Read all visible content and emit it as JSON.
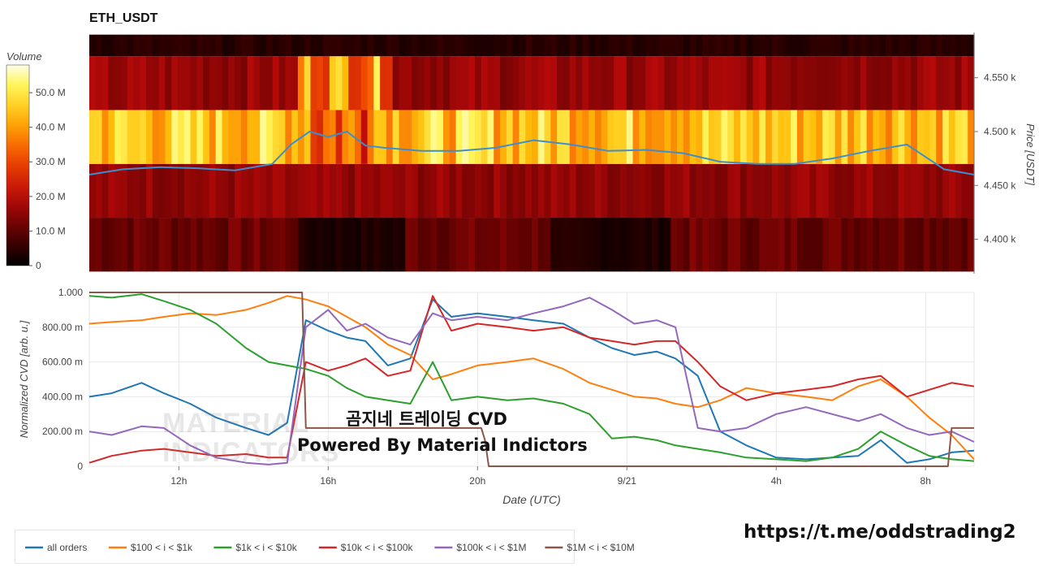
{
  "title": "ETH_USDT",
  "watermark": {
    "line1": "MATERIAL",
    "line2": "INDICATORS"
  },
  "overlay": {
    "line1": "곰지네 트레이딩 CVD",
    "line2": "Powered By Material Indictors"
  },
  "footer_link": "https://t.me/oddstrading2",
  "colors": {
    "all_orders": "#1f77b4",
    "b100_1k": "#ff7f0e",
    "b1k_10k": "#2ca02c",
    "b10k_100k": "#d62728",
    "b100k_1M": "#9467bd",
    "b1M_10M": "#8c564b",
    "price_line": "#3b8fd0"
  },
  "chart_data": [
    {
      "type": "heatmap",
      "title": "ETH_USDT",
      "colorbar": {
        "title": "Volume",
        "ticks": [
          "0",
          "10.0 M",
          "20.0 M",
          "30.0 M",
          "40.0 M",
          "50.0 M"
        ],
        "tick_values": [
          0,
          10,
          20,
          30,
          40,
          50
        ],
        "range": [
          0,
          58
        ]
      },
      "ylabel": "Price [USDT]",
      "y_ticks": [
        "4.400 k",
        "4.450 k",
        "4.500 k",
        "4.550 k"
      ],
      "y_tick_values": [
        4400,
        4450,
        4500,
        4550
      ],
      "ylim": [
        4368,
        4592
      ],
      "x_time_range_hours": [
        9.6,
        33.3
      ],
      "bands": [
        {
          "price_low": 4370,
          "price_high": 4420,
          "profile": "dark_low"
        },
        {
          "price_low": 4420,
          "price_high": 4470,
          "profile": "mid_red"
        },
        {
          "price_low": 4470,
          "price_high": 4520,
          "profile": "bright_yellow"
        },
        {
          "price_low": 4520,
          "price_high": 4570,
          "profile": "upper_red"
        },
        {
          "price_low": 4570,
          "price_high": 4590,
          "profile": "near_black"
        }
      ],
      "price_series": {
        "x": [
          9.6,
          10.5,
          11.5,
          12.5,
          13.5,
          14.5,
          15.0,
          15.5,
          16.0,
          16.5,
          17.0,
          17.5,
          18.5,
          19.5,
          20.5,
          21.5,
          22.5,
          23.5,
          24.5,
          25.5,
          26.5,
          27.5,
          28.5,
          29.5,
          30.5,
          31.5,
          32.5,
          33.3
        ],
        "y": [
          4460,
          4465,
          4467,
          4466,
          4464,
          4470,
          4488,
          4500,
          4495,
          4500,
          4487,
          4485,
          4482,
          4482,
          4485,
          4492,
          4488,
          4482,
          4483,
          4480,
          4472,
          4470,
          4470,
          4475,
          4482,
          4488,
          4465,
          4460
        ]
      }
    },
    {
      "type": "line",
      "xlabel": "Date (UTC)",
      "ylabel": "Normalized CVD [arb. u.]",
      "x_ticks": [
        "12h",
        "16h",
        "20h",
        "9/21",
        "4h",
        "8h"
      ],
      "x_tick_hours": [
        12,
        16,
        20,
        24,
        28,
        32
      ],
      "xlim": [
        9.6,
        33.3
      ],
      "y_ticks": [
        "0",
        "200.00 m",
        "400.00 m",
        "600.00 m",
        "800.00 m",
        "1.000"
      ],
      "y_tick_values": [
        0,
        0.2,
        0.4,
        0.6,
        0.8,
        1.0
      ],
      "ylim": [
        0,
        1.0
      ],
      "grid": true,
      "legend_position": "bottom",
      "series": [
        {
          "name": "all orders",
          "color_key": "all_orders",
          "x": [
            9.6,
            10.2,
            11.0,
            11.6,
            12.3,
            13.0,
            13.8,
            14.4,
            14.9,
            15.4,
            16.0,
            16.5,
            17.0,
            17.6,
            18.2,
            18.8,
            19.3,
            20.0,
            20.8,
            21.5,
            22.3,
            23.0,
            23.6,
            24.2,
            24.8,
            25.3,
            25.9,
            26.5,
            27.2,
            28.0,
            28.8,
            29.5,
            30.2,
            30.8,
            31.5,
            32.1,
            32.7,
            33.3
          ],
          "y": [
            0.4,
            0.42,
            0.48,
            0.42,
            0.36,
            0.28,
            0.22,
            0.18,
            0.25,
            0.84,
            0.78,
            0.74,
            0.72,
            0.58,
            0.62,
            0.96,
            0.86,
            0.88,
            0.86,
            0.84,
            0.82,
            0.74,
            0.68,
            0.64,
            0.66,
            0.62,
            0.52,
            0.2,
            0.12,
            0.05,
            0.04,
            0.05,
            0.06,
            0.15,
            0.02,
            0.04,
            0.08,
            0.09
          ]
        },
        {
          "name": "$100 < i < $1k",
          "color_key": "b100_1k",
          "x": [
            9.6,
            10.2,
            11.0,
            11.6,
            12.3,
            13.0,
            13.8,
            14.4,
            14.9,
            15.4,
            16.0,
            16.5,
            17.0,
            17.6,
            18.2,
            18.8,
            19.3,
            20.0,
            20.8,
            21.5,
            22.3,
            23.0,
            23.6,
            24.2,
            24.8,
            25.3,
            25.9,
            26.5,
            27.2,
            28.0,
            28.8,
            29.5,
            30.2,
            30.8,
            31.5,
            32.1,
            32.7,
            33.3
          ],
          "y": [
            0.82,
            0.83,
            0.84,
            0.86,
            0.88,
            0.87,
            0.9,
            0.94,
            0.98,
            0.96,
            0.92,
            0.86,
            0.8,
            0.7,
            0.64,
            0.5,
            0.53,
            0.58,
            0.6,
            0.62,
            0.56,
            0.48,
            0.44,
            0.4,
            0.39,
            0.36,
            0.34,
            0.38,
            0.45,
            0.42,
            0.4,
            0.38,
            0.46,
            0.5,
            0.4,
            0.28,
            0.18,
            0.04
          ]
        },
        {
          "name": "$1k < i < $10k",
          "color_key": "b1k_10k",
          "x": [
            9.6,
            10.2,
            11.0,
            11.6,
            12.3,
            13.0,
            13.8,
            14.4,
            14.9,
            15.4,
            16.0,
            16.5,
            17.0,
            17.6,
            18.2,
            18.8,
            19.3,
            20.0,
            20.8,
            21.5,
            22.3,
            23.0,
            23.6,
            24.2,
            24.8,
            25.3,
            25.9,
            26.5,
            27.2,
            28.0,
            28.8,
            29.5,
            30.2,
            30.8,
            31.5,
            32.1,
            32.7,
            33.3
          ],
          "y": [
            0.98,
            0.97,
            0.99,
            0.95,
            0.9,
            0.82,
            0.68,
            0.6,
            0.58,
            0.56,
            0.52,
            0.45,
            0.4,
            0.38,
            0.36,
            0.6,
            0.38,
            0.4,
            0.38,
            0.39,
            0.36,
            0.3,
            0.16,
            0.17,
            0.15,
            0.12,
            0.1,
            0.08,
            0.05,
            0.04,
            0.03,
            0.05,
            0.1,
            0.2,
            0.12,
            0.06,
            0.04,
            0.03
          ]
        },
        {
          "name": "$10k < i < $100k",
          "color_key": "b10k_100k",
          "x": [
            9.6,
            10.2,
            11.0,
            11.6,
            12.3,
            13.0,
            13.8,
            14.4,
            14.9,
            15.4,
            16.0,
            16.5,
            17.0,
            17.6,
            18.2,
            18.8,
            19.3,
            20.0,
            20.8,
            21.5,
            22.3,
            23.0,
            23.6,
            24.2,
            24.8,
            25.3,
            25.9,
            26.5,
            27.2,
            28.0,
            28.8,
            29.5,
            30.2,
            30.8,
            31.5,
            32.1,
            32.7,
            33.3
          ],
          "y": [
            0.02,
            0.06,
            0.09,
            0.1,
            0.08,
            0.06,
            0.07,
            0.05,
            0.05,
            0.6,
            0.55,
            0.58,
            0.62,
            0.52,
            0.55,
            0.98,
            0.78,
            0.82,
            0.8,
            0.78,
            0.8,
            0.74,
            0.72,
            0.7,
            0.72,
            0.72,
            0.6,
            0.46,
            0.38,
            0.42,
            0.44,
            0.46,
            0.5,
            0.52,
            0.4,
            0.44,
            0.48,
            0.46
          ]
        },
        {
          "name": "$100k < i < $1M",
          "color_key": "b100k_1M",
          "x": [
            9.6,
            10.2,
            11.0,
            11.6,
            12.3,
            13.0,
            13.8,
            14.4,
            14.9,
            15.4,
            16.0,
            16.5,
            17.0,
            17.6,
            18.2,
            18.8,
            19.3,
            20.0,
            20.8,
            21.5,
            22.3,
            23.0,
            23.6,
            24.2,
            24.8,
            25.3,
            25.9,
            26.5,
            27.2,
            28.0,
            28.8,
            29.5,
            30.2,
            30.8,
            31.5,
            32.1,
            32.7,
            33.3
          ],
          "y": [
            0.2,
            0.18,
            0.23,
            0.22,
            0.12,
            0.05,
            0.02,
            0.01,
            0.02,
            0.8,
            0.9,
            0.78,
            0.82,
            0.74,
            0.7,
            0.88,
            0.84,
            0.86,
            0.84,
            0.88,
            0.92,
            0.97,
            0.9,
            0.82,
            0.84,
            0.8,
            0.22,
            0.2,
            0.22,
            0.3,
            0.34,
            0.3,
            0.26,
            0.3,
            0.22,
            0.18,
            0.2,
            0.14
          ]
        },
        {
          "name": "$1M < i < $10M",
          "color_key": "b1M_10M",
          "x": [
            9.6,
            15.2,
            15.3,
            15.4,
            16.5,
            17.0,
            17.6,
            18.0,
            18.4,
            20.1,
            20.2,
            20.3,
            20.4,
            24.0,
            28.0,
            32.6,
            32.7,
            33.3
          ],
          "y": [
            1.0,
            1.0,
            1.0,
            0.22,
            0.22,
            0.22,
            0.22,
            0.22,
            0.22,
            0.22,
            0.15,
            0.0,
            0.0,
            0.0,
            0.0,
            0.0,
            0.22,
            0.22
          ]
        }
      ]
    }
  ]
}
